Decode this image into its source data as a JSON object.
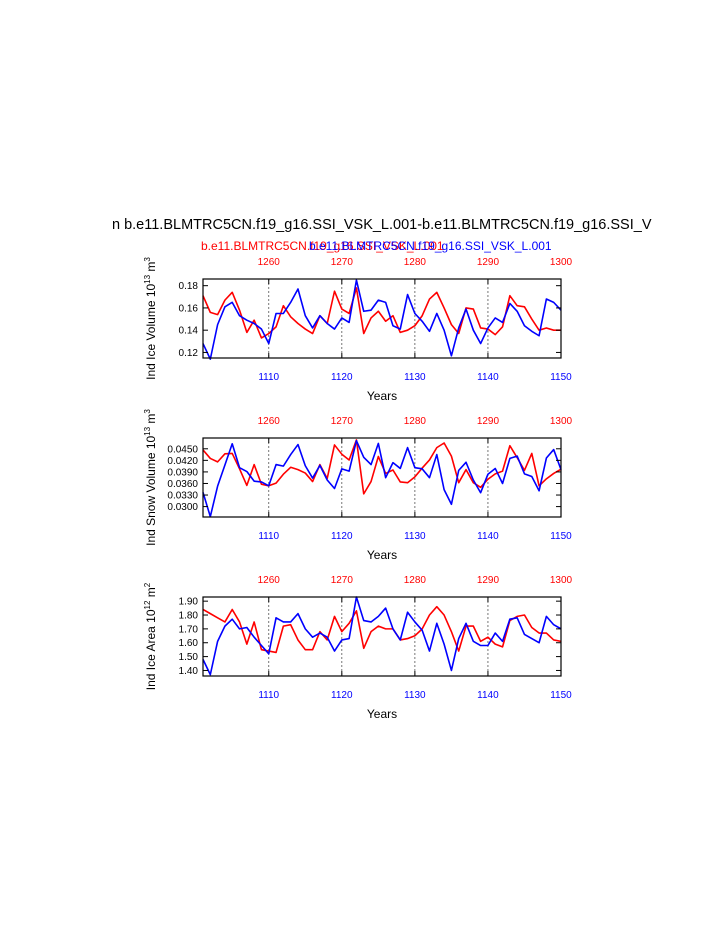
{
  "figure": {
    "title": "n b.e11.BLMTRC5CN.f19_g16.SSI_VSK_L.001-b.e11.BLMTRC5CN.f19_g16.SSI_V",
    "subtitle_red": "b.e11.BLMTRC5CN.f19_g16.SSI_VSK_L.001",
    "subtitle_blue": "b.e11.BLMTRC5CN.f19_g16.SSI_VSK_L.001",
    "colors": {
      "red": "#ff0000",
      "blue": "#0000ff"
    }
  },
  "chart_data": [
    {
      "type": "line",
      "ylabel": "Ind Ice Volume 10",
      "ylabel_exp": "13",
      "ylabel_unit": " m",
      "ylabel_unit_exp": "3",
      "xlabel": "Years",
      "xlim_bottom": [
        1101,
        1150
      ],
      "xlim_top": [
        1251,
        1300
      ],
      "ylim": [
        0.115,
        0.186
      ],
      "yticks": [
        0.12,
        0.14,
        0.16,
        0.18
      ],
      "ytick_labels": [
        "0.12",
        "0.14",
        "0.16",
        "0.18"
      ],
      "xticks_bottom": [
        1110,
        1120,
        1130,
        1140,
        1150
      ],
      "xticks_top": [
        1260,
        1270,
        1280,
        1290,
        1300
      ],
      "gridlines_bottom": [
        1110,
        1120,
        1130,
        1140
      ],
      "series": [
        {
          "color": "red",
          "axis": "top",
          "x_start": 1251,
          "values": [
            0.171,
            0.156,
            0.154,
            0.167,
            0.174,
            0.158,
            0.138,
            0.149,
            0.133,
            0.137,
            0.143,
            0.162,
            0.152,
            0.146,
            0.141,
            0.137,
            0.153,
            0.146,
            0.175,
            0.159,
            0.155,
            0.178,
            0.137,
            0.151,
            0.157,
            0.148,
            0.153,
            0.138,
            0.14,
            0.144,
            0.153,
            0.168,
            0.174,
            0.16,
            0.145,
            0.137,
            0.16,
            0.159,
            0.142,
            0.141,
            0.136,
            0.143,
            0.171,
            0.162,
            0.161,
            0.15,
            0.14,
            0.142,
            0.14,
            0.14
          ]
        },
        {
          "color": "blue",
          "axis": "bottom",
          "x_start": 1101,
          "values": [
            0.128,
            0.114,
            0.145,
            0.161,
            0.165,
            0.153,
            0.149,
            0.146,
            0.141,
            0.128,
            0.155,
            0.155,
            0.165,
            0.177,
            0.153,
            0.142,
            0.153,
            0.146,
            0.141,
            0.151,
            0.147,
            0.185,
            0.157,
            0.158,
            0.167,
            0.165,
            0.144,
            0.141,
            0.172,
            0.155,
            0.148,
            0.139,
            0.155,
            0.14,
            0.117,
            0.142,
            0.159,
            0.14,
            0.128,
            0.142,
            0.151,
            0.147,
            0.164,
            0.157,
            0.144,
            0.139,
            0.135,
            0.168,
            0.165,
            0.158
          ]
        }
      ]
    },
    {
      "type": "line",
      "ylabel": "Ind Snow Volume 10",
      "ylabel_exp": "13",
      "ylabel_unit": " m",
      "ylabel_unit_exp": "3",
      "xlabel": "Years",
      "xlim_bottom": [
        1101,
        1150
      ],
      "xlim_top": [
        1251,
        1300
      ],
      "ylim": [
        0.0273,
        0.0478
      ],
      "yticks": [
        0.03,
        0.033,
        0.036,
        0.039,
        0.042,
        0.045
      ],
      "ytick_labels": [
        "0.0300",
        "0.0330",
        "0.0360",
        "0.0390",
        "0.0420",
        "0.0450"
      ],
      "xticks_bottom": [
        1110,
        1120,
        1130,
        1140,
        1150
      ],
      "xticks_top": [
        1260,
        1270,
        1280,
        1290,
        1300
      ],
      "gridlines_bottom": [
        1110,
        1120,
        1130,
        1140
      ],
      "series": [
        {
          "color": "red",
          "axis": "top",
          "x_start": 1251,
          "values": [
            0.0447,
            0.0425,
            0.0416,
            0.0437,
            0.0438,
            0.0398,
            0.0355,
            0.0409,
            0.0358,
            0.0354,
            0.0361,
            0.0384,
            0.0402,
            0.0396,
            0.0387,
            0.0365,
            0.0409,
            0.0373,
            0.046,
            0.0436,
            0.0421,
            0.0473,
            0.0333,
            0.0365,
            0.043,
            0.0386,
            0.0395,
            0.0364,
            0.0362,
            0.0377,
            0.04,
            0.0421,
            0.0453,
            0.0465,
            0.0431,
            0.0362,
            0.0396,
            0.0362,
            0.035,
            0.0371,
            0.0385,
            0.0392,
            0.0458,
            0.0427,
            0.0394,
            0.0438,
            0.0354,
            0.0372,
            0.0386,
            0.0397
          ]
        },
        {
          "color": "blue",
          "axis": "bottom",
          "x_start": 1101,
          "values": [
            0.0337,
            0.0274,
            0.0353,
            0.0408,
            0.0463,
            0.0401,
            0.0391,
            0.0366,
            0.0364,
            0.0354,
            0.0409,
            0.0405,
            0.0435,
            0.0461,
            0.0406,
            0.0374,
            0.0407,
            0.0369,
            0.0347,
            0.0398,
            0.0392,
            0.0471,
            0.0428,
            0.0409,
            0.0464,
            0.0375,
            0.0414,
            0.0399,
            0.0453,
            0.0401,
            0.0398,
            0.0375,
            0.0435,
            0.0344,
            0.0306,
            0.0394,
            0.0415,
            0.0369,
            0.0336,
            0.0384,
            0.0399,
            0.036,
            0.0425,
            0.0431,
            0.0385,
            0.0378,
            0.0341,
            0.0426,
            0.0448,
            0.0396
          ]
        }
      ]
    },
    {
      "type": "line",
      "ylabel": "Ind Ice Area 10",
      "ylabel_exp": "12",
      "ylabel_unit": " m",
      "ylabel_unit_exp": "2",
      "xlabel": "Years",
      "xlim_bottom": [
        1101,
        1150
      ],
      "xlim_top": [
        1251,
        1300
      ],
      "ylim": [
        1.36,
        1.93
      ],
      "yticks": [
        1.4,
        1.5,
        1.6,
        1.7,
        1.8,
        1.9
      ],
      "ytick_labels": [
        "1.40",
        "1.50",
        "1.60",
        "1.70",
        "1.80",
        "1.90"
      ],
      "xticks_bottom": [
        1110,
        1120,
        1130,
        1140,
        1150
      ],
      "xticks_top": [
        1260,
        1270,
        1280,
        1290,
        1300
      ],
      "gridlines_bottom": [
        1110,
        1120,
        1130,
        1140
      ],
      "series": [
        {
          "color": "red",
          "axis": "top",
          "x_start": 1251,
          "values": [
            1.84,
            1.81,
            1.78,
            1.75,
            1.84,
            1.75,
            1.59,
            1.75,
            1.55,
            1.54,
            1.53,
            1.72,
            1.73,
            1.62,
            1.55,
            1.55,
            1.68,
            1.62,
            1.79,
            1.68,
            1.74,
            1.83,
            1.56,
            1.68,
            1.72,
            1.7,
            1.7,
            1.62,
            1.63,
            1.65,
            1.7,
            1.8,
            1.86,
            1.8,
            1.68,
            1.54,
            1.72,
            1.72,
            1.61,
            1.64,
            1.59,
            1.57,
            1.76,
            1.79,
            1.8,
            1.71,
            1.67,
            1.67,
            1.62,
            1.61
          ]
        },
        {
          "color": "blue",
          "axis": "bottom",
          "x_start": 1101,
          "values": [
            1.48,
            1.37,
            1.61,
            1.72,
            1.77,
            1.7,
            1.71,
            1.64,
            1.58,
            1.52,
            1.78,
            1.75,
            1.75,
            1.81,
            1.7,
            1.64,
            1.67,
            1.64,
            1.54,
            1.62,
            1.63,
            1.93,
            1.76,
            1.75,
            1.79,
            1.85,
            1.7,
            1.62,
            1.82,
            1.75,
            1.69,
            1.54,
            1.74,
            1.59,
            1.4,
            1.63,
            1.74,
            1.61,
            1.58,
            1.58,
            1.67,
            1.61,
            1.77,
            1.78,
            1.66,
            1.63,
            1.6,
            1.79,
            1.73,
            1.7
          ]
        }
      ]
    }
  ]
}
